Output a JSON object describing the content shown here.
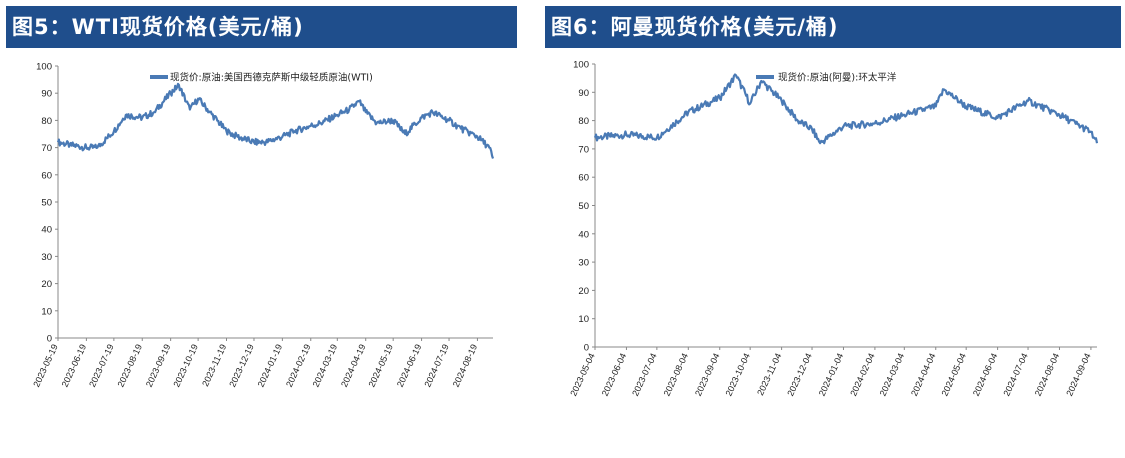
{
  "charts": [
    {
      "id": "left",
      "title": "图5：WTI现货价格(美元/桶)",
      "legend": "现货价:原油:美国西德克萨斯中级轻质原油(WTI)",
      "yticks": [
        "0",
        "10",
        "20",
        "30",
        "40",
        "50",
        "60",
        "70",
        "80",
        "90",
        "100"
      ],
      "xticks": [
        "2023-05-19",
        "2023-06-19",
        "2023-07-19",
        "2023-08-19",
        "2023-09-19",
        "2023-10-19",
        "2023-11-19",
        "2023-12-19",
        "2024-01-19",
        "2024-02-19",
        "2024-03-19",
        "2024-04-19",
        "2024-05-19",
        "2024-06-19",
        "2024-07-19",
        "2024-08-19"
      ]
    },
    {
      "id": "right",
      "title": "图6：阿曼现货价格(美元/桶)",
      "legend": "现货价:原油(阿曼):环太平洋",
      "yticks": [
        "0",
        "10",
        "20",
        "30",
        "40",
        "50",
        "60",
        "70",
        "80",
        "90",
        "100"
      ],
      "xticks": [
        "2023-05-04",
        "2023-06-04",
        "2023-07-04",
        "2023-08-04",
        "2023-09-04",
        "2023-10-04",
        "2023-11-04",
        "2023-12-04",
        "2024-01-04",
        "2024-02-04",
        "2024-03-04",
        "2024-04-04",
        "2024-05-04",
        "2024-06-04",
        "2024-07-04",
        "2024-08-04",
        "2024-09-04"
      ]
    }
  ],
  "chart_data": [
    {
      "type": "line",
      "title": "图5：WTI现货价格(美元/桶)",
      "ylim": [
        0,
        100
      ],
      "series": [
        {
          "name": "现货价:原油:美国西德克萨斯中级轻质原油(WTI)",
          "color": "#4a7ab5",
          "x": [
            "2023-05-19",
            "2023-06-01",
            "2023-06-19",
            "2023-07-01",
            "2023-07-19",
            "2023-08-01",
            "2023-08-19",
            "2023-09-01",
            "2023-09-19",
            "2023-09-28",
            "2023-10-10",
            "2023-10-19",
            "2023-11-01",
            "2023-11-19",
            "2023-12-01",
            "2023-12-19",
            "2024-01-01",
            "2024-01-19",
            "2024-02-01",
            "2024-02-19",
            "2024-03-01",
            "2024-03-19",
            "2024-04-01",
            "2024-04-12",
            "2024-04-19",
            "2024-05-01",
            "2024-05-19",
            "2024-06-01",
            "2024-06-19",
            "2024-07-01",
            "2024-07-19",
            "2024-08-01",
            "2024-08-19",
            "2024-09-01",
            "2024-09-05"
          ],
          "values": [
            72,
            71,
            70,
            70,
            76,
            82,
            81,
            83,
            90,
            93,
            84,
            88,
            83,
            76,
            74,
            72,
            72,
            74,
            76,
            78,
            79,
            82,
            84,
            87,
            83,
            79,
            80,
            75,
            81,
            83,
            80,
            77,
            74,
            70,
            66
          ]
        }
      ]
    },
    {
      "type": "line",
      "title": "图6：阿曼现货价格(美元/桶)",
      "ylim": [
        0,
        100
      ],
      "series": [
        {
          "name": "现货价:原油(阿曼):环太平洋",
          "color": "#4a7ab5",
          "x": [
            "2023-05-04",
            "2023-06-04",
            "2023-07-04",
            "2023-08-04",
            "2023-09-04",
            "2023-09-20",
            "2023-10-04",
            "2023-10-15",
            "2023-11-04",
            "2023-11-20",
            "2023-12-04",
            "2023-12-12",
            "2024-01-04",
            "2024-02-04",
            "2024-03-04",
            "2024-04-04",
            "2024-04-12",
            "2024-05-04",
            "2024-06-04",
            "2024-07-04",
            "2024-08-04",
            "2024-09-04",
            "2024-09-10"
          ],
          "values": [
            74,
            75,
            74,
            83,
            88,
            96,
            86,
            94,
            87,
            80,
            77,
            72,
            78,
            79,
            82,
            85,
            91,
            85,
            81,
            87,
            82,
            76,
            72
          ]
        }
      ]
    }
  ]
}
